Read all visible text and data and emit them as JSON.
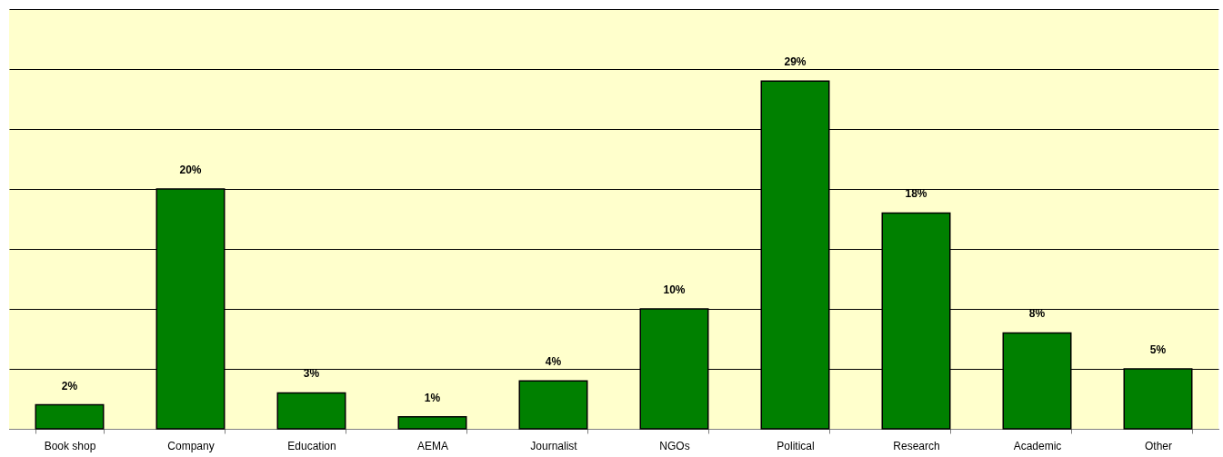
{
  "chart_data": {
    "type": "bar",
    "categories": [
      "Book shop",
      "Company",
      "Education",
      "AEMA",
      "Journalist",
      "NGOs",
      "Political",
      "Research",
      "Academic",
      "Other"
    ],
    "values": [
      2,
      20,
      3,
      1,
      4,
      10,
      29,
      18,
      8,
      5
    ],
    "value_labels": [
      "2%",
      "20%",
      "3%",
      "1%",
      "4%",
      "10%",
      "29%",
      "18%",
      "8%",
      "5%"
    ],
    "color": "#008000",
    "ylim": [
      0,
      35
    ],
    "yticks": [
      {
        "value": 0,
        "label": null
      },
      {
        "value": 5,
        "label": null
      },
      {
        "value": 10,
        "label": null
      },
      {
        "value": 15,
        "label": null
      },
      {
        "value": 20,
        "label": null
      },
      {
        "value": 25,
        "label": null
      },
      {
        "value": 30,
        "label": null
      },
      {
        "value": 35,
        "label": null
      }
    ],
    "grid": "y"
  }
}
